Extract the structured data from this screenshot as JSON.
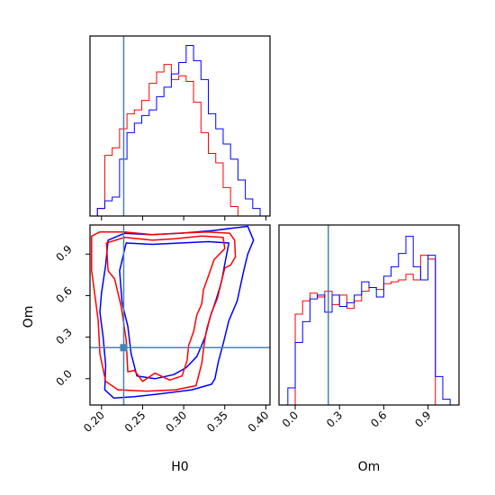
{
  "chart_data": {
    "type": "corner",
    "parameters": [
      "H0",
      "Om"
    ],
    "truth": {
      "H0": 0.227,
      "Om": 0.224
    },
    "truth_color": "#4682b4",
    "series": [
      {
        "color": "#ff0000"
      },
      {
        "color": "#0000ff"
      }
    ],
    "panels": [
      {
        "id": "hist-H0",
        "type": "step-histogram",
        "xlim": [
          0.186,
          0.405
        ],
        "bin_edges": [
          0.186,
          0.195,
          0.204,
          0.213,
          0.222,
          0.231,
          0.24,
          0.249,
          0.258,
          0.267,
          0.276,
          0.285,
          0.294,
          0.303,
          0.312,
          0.321,
          0.33,
          0.339,
          0.348,
          0.357,
          0.366,
          0.375,
          0.384,
          0.393,
          0.402
        ],
        "series_counts": [
          [
            0,
            0.04,
            0.32,
            0.36,
            0.46,
            0.54,
            0.56,
            0.61,
            0.7,
            0.76,
            0.8,
            0.72,
            0.74,
            0.71,
            0.6,
            0.44,
            0.33,
            0.28,
            0.15,
            0.05,
            0,
            0,
            0,
            0
          ],
          [
            0,
            0.04,
            0.08,
            0.1,
            0.3,
            0.44,
            0.49,
            0.53,
            0.56,
            0.63,
            0.68,
            0.75,
            0.81,
            0.9,
            0.82,
            0.72,
            0.54,
            0.46,
            0.38,
            0.3,
            0.19,
            0.09,
            0.04,
            0
          ]
        ],
        "ylim": [
          0,
          0.95
        ]
      },
      {
        "id": "hist-Om",
        "type": "step-histogram",
        "xlim": [
          -0.11,
          1.11
        ],
        "bin_edges": [
          -0.11,
          -0.05,
          0.0,
          0.05,
          0.1,
          0.15,
          0.2,
          0.25,
          0.3,
          0.35,
          0.4,
          0.45,
          0.5,
          0.55,
          0.6,
          0.65,
          0.7,
          0.75,
          0.8,
          0.85,
          0.9,
          0.95,
          1.0,
          1.05,
          1.11
        ],
        "series_counts": [
          [
            0,
            0,
            0.48,
            0.55,
            0.59,
            0.57,
            0.6,
            0.53,
            0.58,
            0.51,
            0.55,
            0.6,
            0.62,
            0.61,
            0.64,
            0.65,
            0.66,
            0.69,
            0.66,
            0.79,
            0.77,
            0,
            0,
            0
          ],
          [
            0,
            0.09,
            0.33,
            0.44,
            0.56,
            0.58,
            0.49,
            0.58,
            0.52,
            0.54,
            0.58,
            0.65,
            0.62,
            0.57,
            0.68,
            0.73,
            0.8,
            0.89,
            0.73,
            0.66,
            0.79,
            0.15,
            0.03,
            0
          ]
        ],
        "ylim": [
          0,
          0.95
        ]
      },
      {
        "id": "contour-H0-Om",
        "type": "contour",
        "xlim": [
          0.186,
          0.405
        ],
        "ylim": [
          -0.19,
          1.11
        ],
        "truth_marker": {
          "x": 0.227,
          "y": 0.224
        }
      }
    ],
    "x_ticks": {
      "H0": [
        "0.20",
        "0.25",
        "0.30",
        "0.35",
        "0.40"
      ],
      "Om": [
        "0.0",
        "0.3",
        "0.6",
        "0.9"
      ]
    },
    "y_ticks": {
      "Om": [
        "0.0",
        "0.3",
        "0.6",
        "0.9"
      ]
    },
    "x_tick_values": {
      "H0": [
        0.2,
        0.25,
        0.3,
        0.35,
        0.4
      ],
      "Om": [
        0.0,
        0.3,
        0.6,
        0.9
      ]
    },
    "y_tick_values": {
      "Om": [
        0.0,
        0.3,
        0.6,
        0.9
      ]
    },
    "xlabel": {
      "H0": "H0",
      "Om": "Om"
    },
    "ylabel": {
      "Om": "Om"
    },
    "contours": {
      "red": [
        [
          [
            0.188,
            0.78
          ],
          [
            0.188,
            1.03
          ],
          [
            0.198,
            1.06
          ],
          [
            0.228,
            1.06
          ],
          [
            0.262,
            1.04
          ],
          [
            0.291,
            1.05
          ],
          [
            0.329,
            1.06
          ],
          [
            0.356,
            1.05
          ],
          [
            0.362,
            1.0
          ],
          [
            0.363,
            0.88
          ],
          [
            0.357,
            0.82
          ],
          [
            0.35,
            0.8
          ],
          [
            0.345,
            0.68
          ],
          [
            0.341,
            0.58
          ],
          [
            0.334,
            0.48
          ],
          [
            0.328,
            0.36
          ],
          [
            0.325,
            0.25
          ],
          [
            0.322,
            0.11
          ],
          [
            0.315,
            -0.05
          ],
          [
            0.29,
            -0.08
          ],
          [
            0.255,
            -0.09
          ],
          [
            0.22,
            -0.08
          ],
          [
            0.205,
            -0.02
          ],
          [
            0.198,
            0.18
          ],
          [
            0.196,
            0.42
          ],
          [
            0.192,
            0.6
          ],
          [
            0.188,
            0.78
          ]
        ],
        [
          [
            0.208,
            0.78
          ],
          [
            0.206,
            0.98
          ],
          [
            0.228,
            1.02
          ],
          [
            0.262,
            1.0
          ],
          [
            0.288,
            1.01
          ],
          [
            0.322,
            1.03
          ],
          [
            0.348,
            1.02
          ],
          [
            0.35,
            0.94
          ],
          [
            0.337,
            0.86
          ],
          [
            0.33,
            0.74
          ],
          [
            0.324,
            0.64
          ],
          [
            0.322,
            0.54
          ],
          [
            0.316,
            0.46
          ],
          [
            0.312,
            0.34
          ],
          [
            0.306,
            0.24
          ],
          [
            0.304,
            0.13
          ],
          [
            0.298,
            0.02
          ],
          [
            0.283,
            -0.01
          ],
          [
            0.265,
            0.04
          ],
          [
            0.25,
            -0.02
          ],
          [
            0.24,
            0.06
          ],
          [
            0.232,
            0.05
          ],
          [
            0.23,
            0.28
          ],
          [
            0.224,
            0.52
          ],
          [
            0.216,
            0.72
          ],
          [
            0.208,
            0.78
          ]
        ]
      ],
      "blue": [
        [
          [
            0.2,
            0.62
          ],
          [
            0.205,
            0.82
          ],
          [
            0.208,
            1.0
          ],
          [
            0.228,
            1.05
          ],
          [
            0.26,
            1.04
          ],
          [
            0.295,
            1.05
          ],
          [
            0.335,
            1.07
          ],
          [
            0.378,
            1.1
          ],
          [
            0.385,
            1.0
          ],
          [
            0.378,
            0.9
          ],
          [
            0.373,
            0.78
          ],
          [
            0.365,
            0.56
          ],
          [
            0.355,
            0.42
          ],
          [
            0.348,
            0.25
          ],
          [
            0.342,
            0.12
          ],
          [
            0.338,
            0.0
          ],
          [
            0.334,
            -0.04
          ],
          [
            0.31,
            -0.08
          ],
          [
            0.27,
            -0.11
          ],
          [
            0.24,
            -0.13
          ],
          [
            0.215,
            -0.14
          ],
          [
            0.204,
            -0.08
          ],
          [
            0.205,
            0.1
          ],
          [
            0.202,
            0.3
          ],
          [
            0.198,
            0.48
          ],
          [
            0.2,
            0.62
          ]
        ],
        [
          [
            0.225,
            0.55
          ],
          [
            0.222,
            0.78
          ],
          [
            0.23,
            0.98
          ],
          [
            0.262,
            0.97
          ],
          [
            0.296,
            0.98
          ],
          [
            0.33,
            0.99
          ],
          [
            0.355,
            0.98
          ],
          [
            0.35,
            0.83
          ],
          [
            0.346,
            0.7
          ],
          [
            0.34,
            0.58
          ],
          [
            0.332,
            0.44
          ],
          [
            0.326,
            0.3
          ],
          [
            0.316,
            0.16
          ],
          [
            0.303,
            0.08
          ],
          [
            0.288,
            0.03
          ],
          [
            0.265,
            0.0
          ],
          [
            0.243,
            0.02
          ],
          [
            0.236,
            0.18
          ],
          [
            0.232,
            0.38
          ],
          [
            0.225,
            0.55
          ]
        ]
      ]
    }
  }
}
